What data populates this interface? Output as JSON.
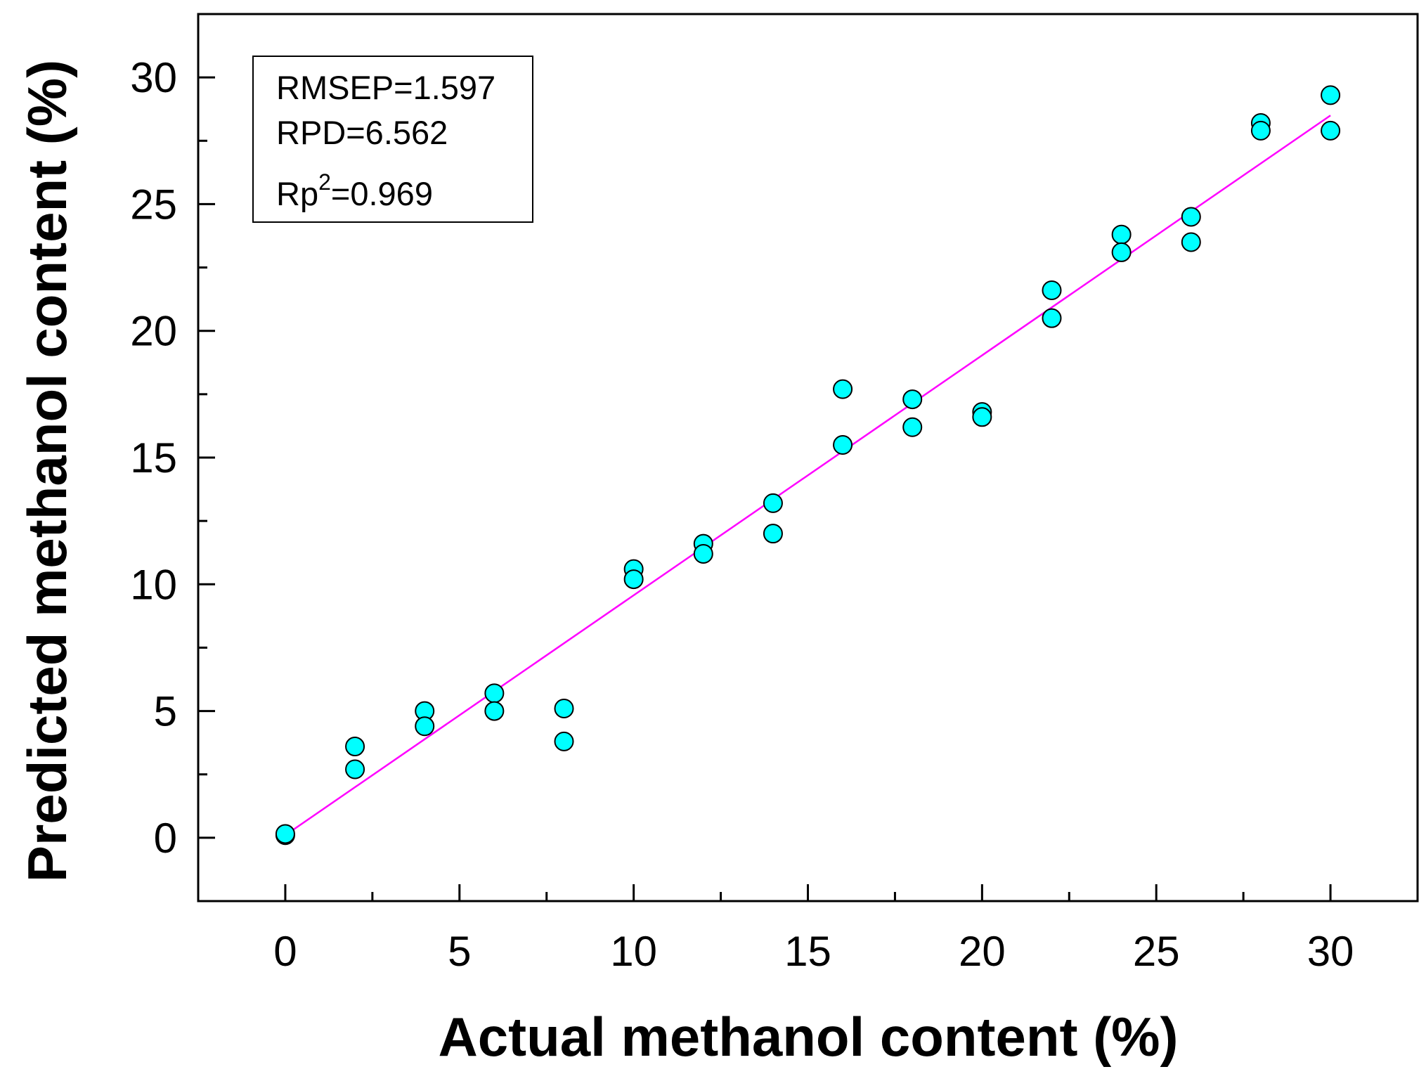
{
  "chart_data": {
    "type": "scatter",
    "xlabel": "Actual methanol content (%)",
    "ylabel": "Predicted methanol content (%)",
    "xlim": [
      -2.5,
      32.5
    ],
    "ylim": [
      -2.5,
      32.5
    ],
    "x_ticks": [
      "0",
      "5",
      "10",
      "15",
      "20",
      "25",
      "30"
    ],
    "y_ticks": [
      "0",
      "5",
      "10",
      "15",
      "20",
      "25",
      "30"
    ],
    "x_tick_values": [
      0,
      5,
      10,
      15,
      20,
      25,
      30
    ],
    "y_tick_values": [
      0,
      5,
      10,
      15,
      20,
      25,
      30
    ],
    "minor_tick_step": 2.5,
    "grid": false,
    "marker_color": "#00ffff",
    "marker_edge_color": "#000000",
    "line_color": "#ff00ff",
    "points": [
      {
        "x": 0,
        "y": 0.1
      },
      {
        "x": 0,
        "y": 0.15
      },
      {
        "x": 2,
        "y": 3.6
      },
      {
        "x": 2,
        "y": 2.7
      },
      {
        "x": 4,
        "y": 5.0
      },
      {
        "x": 4,
        "y": 4.4
      },
      {
        "x": 6,
        "y": 5.7
      },
      {
        "x": 6,
        "y": 5.0
      },
      {
        "x": 8,
        "y": 5.1
      },
      {
        "x": 8,
        "y": 3.8
      },
      {
        "x": 10,
        "y": 10.6
      },
      {
        "x": 10,
        "y": 10.2
      },
      {
        "x": 12,
        "y": 11.6
      },
      {
        "x": 12,
        "y": 11.2
      },
      {
        "x": 14,
        "y": 13.2
      },
      {
        "x": 14,
        "y": 12.0
      },
      {
        "x": 16,
        "y": 17.7
      },
      {
        "x": 16,
        "y": 15.5
      },
      {
        "x": 18,
        "y": 17.3
      },
      {
        "x": 18,
        "y": 16.2
      },
      {
        "x": 20,
        "y": 16.8
      },
      {
        "x": 20,
        "y": 16.6
      },
      {
        "x": 22,
        "y": 21.6
      },
      {
        "x": 22,
        "y": 20.5
      },
      {
        "x": 24,
        "y": 23.8
      },
      {
        "x": 24,
        "y": 23.1
      },
      {
        "x": 26,
        "y": 24.5
      },
      {
        "x": 26,
        "y": 23.5
      },
      {
        "x": 28,
        "y": 28.2
      },
      {
        "x": 28,
        "y": 27.9
      },
      {
        "x": 30,
        "y": 29.3
      },
      {
        "x": 30,
        "y": 27.9
      }
    ],
    "fit_line": {
      "x": [
        0,
        30
      ],
      "y": [
        0.1,
        28.5
      ]
    },
    "annotations": {
      "rmsep": "RMSEP=1.597",
      "rpd": "RPD=6.562",
      "rp2_prefix": "Rp",
      "rp2_sup": "2",
      "rp2_value": "=0.969"
    }
  }
}
